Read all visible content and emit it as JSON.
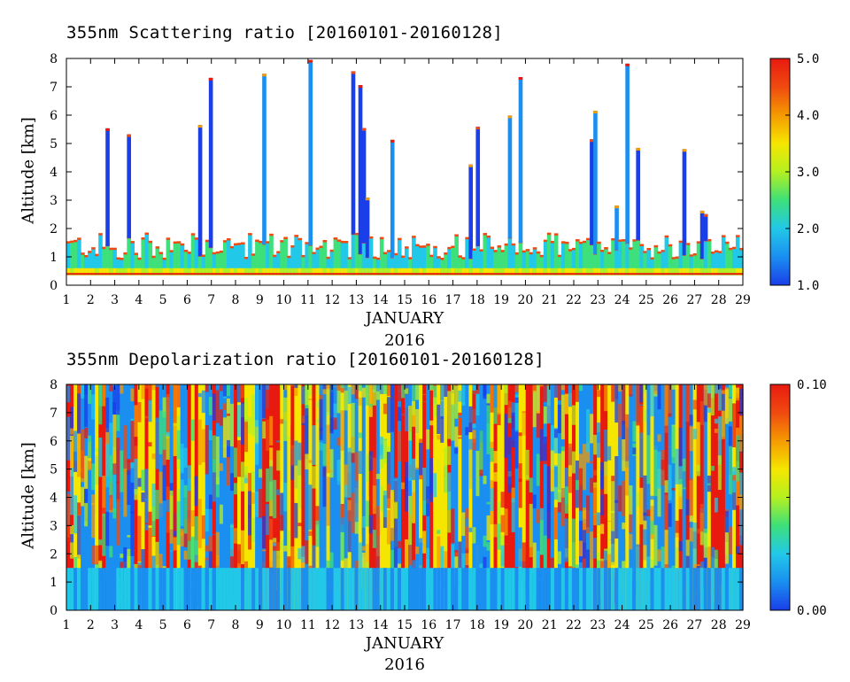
{
  "chart_data": [
    {
      "type": "heatmap",
      "title": "355nm Scattering ratio [20160101-20160128]",
      "xlabel": "JANUARY",
      "xsublabel": "2016",
      "ylabel": "Altitude [km]",
      "x_ticks": [
        "1",
        "2",
        "3",
        "4",
        "5",
        "6",
        "7",
        "8",
        "9",
        "10",
        "11",
        "12",
        "13",
        "14",
        "15",
        "16",
        "17",
        "18",
        "19",
        "20",
        "21",
        "22",
        "23",
        "24",
        "25",
        "26",
        "27",
        "28",
        "29"
      ],
      "y_ticks": [
        "0",
        "1",
        "2",
        "3",
        "4",
        "5",
        "6",
        "7",
        "8"
      ],
      "xlim": [
        1,
        29
      ],
      "ylim": [
        0,
        8
      ],
      "colorbar": {
        "ticks": [
          "1.0",
          "2.0",
          "3.0",
          "4.0",
          "5.0"
        ],
        "range": [
          1.0,
          5.0
        ]
      },
      "colors": [
        "#1a3ee8",
        "#1a8ff0",
        "#22c8e8",
        "#3de07a",
        "#b4f020",
        "#f5e600",
        "#f59a00",
        "#f04a10",
        "#e81a10"
      ]
    },
    {
      "type": "heatmap",
      "title": "355nm Depolarization ratio [20160101-20160128]",
      "xlabel": "JANUARY",
      "xsublabel": "2016",
      "ylabel": "Altitude [km]",
      "x_ticks": [
        "1",
        "2",
        "3",
        "4",
        "5",
        "6",
        "7",
        "8",
        "9",
        "10",
        "11",
        "12",
        "13",
        "14",
        "15",
        "16",
        "17",
        "18",
        "19",
        "20",
        "21",
        "22",
        "23",
        "24",
        "25",
        "26",
        "27",
        "28",
        "29"
      ],
      "y_ticks": [
        "0",
        "1",
        "2",
        "3",
        "4",
        "5",
        "6",
        "7",
        "8"
      ],
      "xlim": [
        1,
        29
      ],
      "ylim": [
        0,
        8
      ],
      "colorbar": {
        "ticks": [
          "0.00",
          "0.10"
        ],
        "range": [
          0.0,
          0.1
        ]
      },
      "colors": [
        "#1a3ee8",
        "#1a8ff0",
        "#22c8e8",
        "#3de07a",
        "#b4f020",
        "#f5e600",
        "#f59a00",
        "#f04a10",
        "#e81a10"
      ]
    }
  ]
}
